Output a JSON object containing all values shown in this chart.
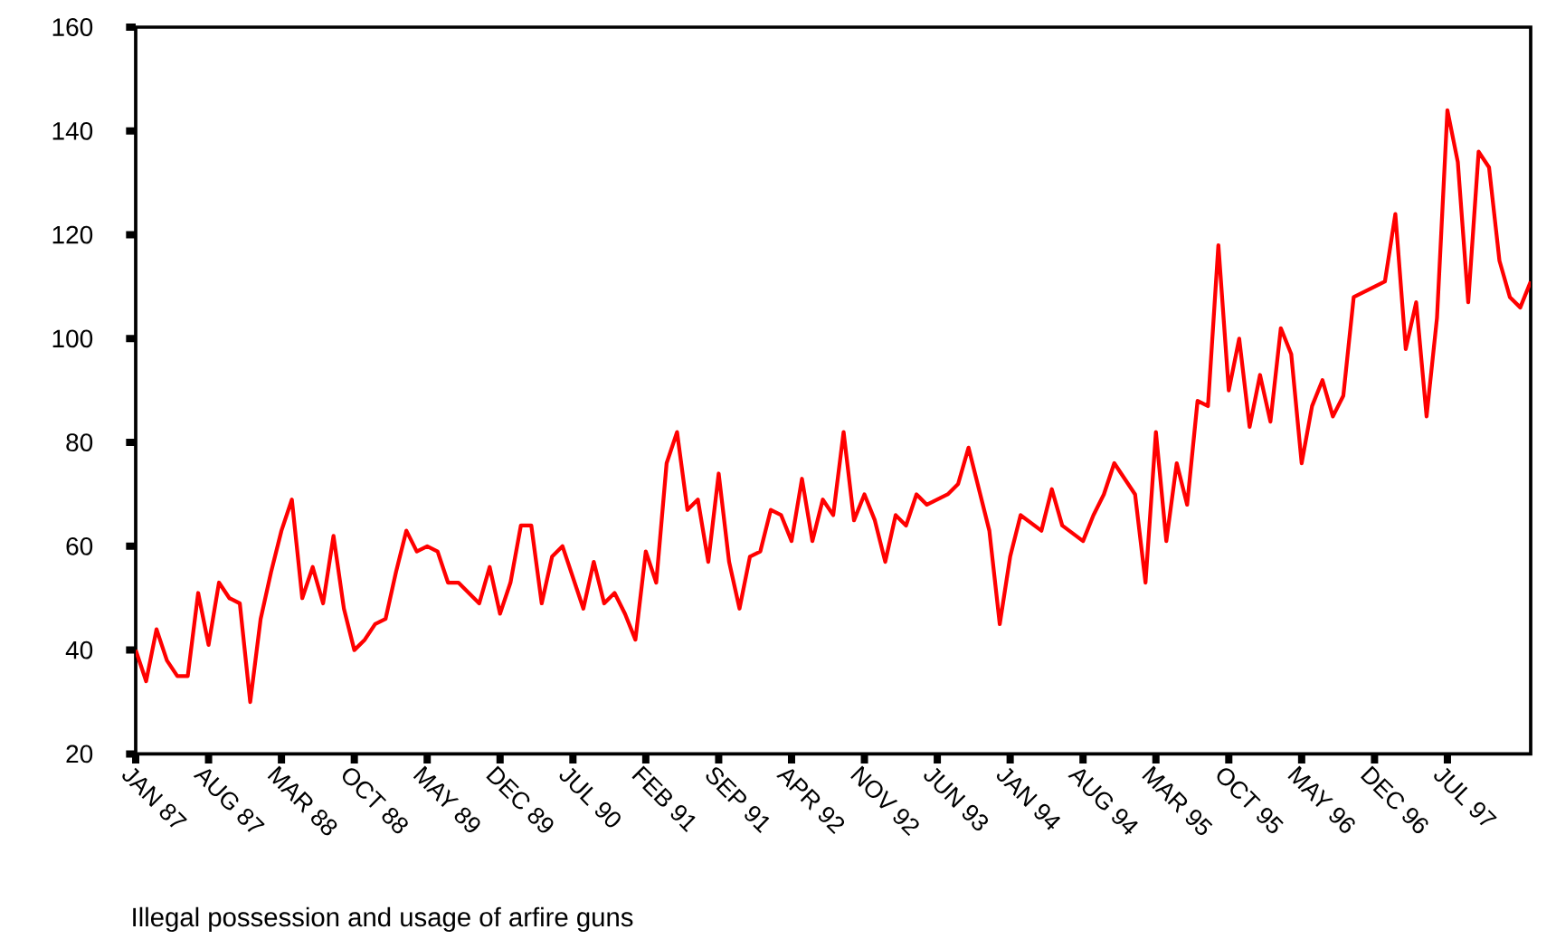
{
  "chart_data": {
    "type": "line",
    "annotations": [
      "Illegal possession and usage of arfire guns"
    ],
    "x": [
      "1987-01",
      "1987-02",
      "1987-03",
      "1987-04",
      "1987-05",
      "1987-06",
      "1987-07",
      "1987-08",
      "1987-09",
      "1987-10",
      "1987-11",
      "1987-12",
      "1988-01",
      "1988-02",
      "1988-03",
      "1988-04",
      "1988-05",
      "1988-06",
      "1988-07",
      "1988-08",
      "1988-09",
      "1988-10",
      "1988-11",
      "1988-12",
      "1989-01",
      "1989-02",
      "1989-03",
      "1989-04",
      "1989-05",
      "1989-06",
      "1989-07",
      "1989-08",
      "1989-10",
      "1989-11",
      "1989-12",
      "1990-01",
      "1990-02",
      "1990-03",
      "1990-04",
      "1990-05",
      "1990-06",
      "1990-08",
      "1990-09",
      "1990-10",
      "1990-11",
      "1990-12",
      "1991-01",
      "1991-02",
      "1991-03",
      "1991-04",
      "1991-05",
      "1991-06",
      "1991-07",
      "1991-08",
      "1991-09",
      "1991-10",
      "1991-11",
      "1991-12",
      "1992-01",
      "1992-02",
      "1992-03",
      "1992-04",
      "1992-05",
      "1992-06",
      "1992-07",
      "1992-08",
      "1992-09",
      "1992-10",
      "1992-11",
      "1992-12",
      "1993-01",
      "1993-02",
      "1993-03",
      "1993-04",
      "1993-05",
      "1993-06",
      "1993-07",
      "1993-08",
      "1993-09",
      "1993-11",
      "1993-12",
      "1994-01",
      "1994-02",
      "1994-04",
      "1994-05",
      "1994-06",
      "1994-08",
      "1994-09",
      "1994-10",
      "1994-11",
      "1995-01",
      "1995-02",
      "1995-03",
      "1995-04",
      "1995-05",
      "1995-06",
      "1995-07",
      "1995-08",
      "1995-09",
      "1995-10",
      "1995-11",
      "1995-12",
      "1996-01",
      "1996-02",
      "1996-03",
      "1996-04",
      "1996-05",
      "1996-06",
      "1996-07",
      "1996-08",
      "1996-09",
      "1996-10",
      "1997-01",
      "1997-02",
      "1997-03",
      "1997-04",
      "1997-05",
      "1997-06",
      "1997-07",
      "1997-08",
      "1997-09",
      "1997-10",
      "1997-11",
      "1997-12",
      "1998-01",
      "1998-02",
      "1998-03"
    ],
    "series": [
      {
        "color": "#ff0000",
        "values": [
          40,
          34,
          44,
          38,
          35,
          35,
          51,
          41,
          53,
          50,
          49,
          30,
          46,
          55,
          63,
          69,
          50,
          56,
          49,
          62,
          48,
          40,
          42,
          45,
          46,
          55,
          63,
          59,
          60,
          59,
          53,
          53,
          49,
          56,
          47,
          53,
          64,
          64,
          49,
          58,
          60,
          48,
          57,
          49,
          51,
          47,
          42,
          59,
          53,
          76,
          82,
          67,
          69,
          57,
          74,
          57,
          48,
          58,
          59,
          67,
          66,
          61,
          73,
          61,
          69,
          66,
          82,
          65,
          70,
          65,
          57,
          66,
          64,
          70,
          68,
          69,
          70,
          72,
          79,
          63,
          45,
          58,
          66,
          63,
          71,
          64,
          61,
          66,
          70,
          76,
          70,
          53,
          82,
          61,
          76,
          68,
          88,
          87,
          118,
          90,
          100,
          83,
          93,
          84,
          102,
          97,
          76,
          87,
          92,
          85,
          89,
          108,
          111,
          124,
          98,
          107,
          85,
          104,
          144,
          134,
          107,
          136,
          133,
          115,
          108,
          106,
          111
        ]
      }
    ],
    "xlim": [
      "1987-01",
      "1998-03"
    ],
    "xticks": [
      {
        "value": "1987-01",
        "label": "JAN 87"
      },
      {
        "value": "1987-08",
        "label": "AUG 87"
      },
      {
        "value": "1988-03",
        "label": "MAR 88"
      },
      {
        "value": "1988-10",
        "label": "OCT 88"
      },
      {
        "value": "1989-05",
        "label": "MAY 89"
      },
      {
        "value": "1989-12",
        "label": "DEC 89"
      },
      {
        "value": "1990-07",
        "label": "JUL 90"
      },
      {
        "value": "1991-02",
        "label": "FEB 91"
      },
      {
        "value": "1991-09",
        "label": "SEP 91"
      },
      {
        "value": "1992-04",
        "label": "APR 92"
      },
      {
        "value": "1992-11",
        "label": "NOV 92"
      },
      {
        "value": "1993-06",
        "label": "JUN 93"
      },
      {
        "value": "1994-01",
        "label": "JAN 94"
      },
      {
        "value": "1994-08",
        "label": "AUG 94"
      },
      {
        "value": "1995-03",
        "label": "MAR 95"
      },
      {
        "value": "1995-10",
        "label": "OCT 95"
      },
      {
        "value": "1996-05",
        "label": "MAY 96"
      },
      {
        "value": "1996-12",
        "label": "DEC 96"
      },
      {
        "value": "1997-07",
        "label": "JUL 97"
      }
    ],
    "ylim": [
      20,
      160
    ],
    "yticks": [
      20,
      40,
      60,
      80,
      100,
      120,
      140,
      160
    ],
    "grid": false,
    "marker": "none",
    "line_style": "solid"
  }
}
